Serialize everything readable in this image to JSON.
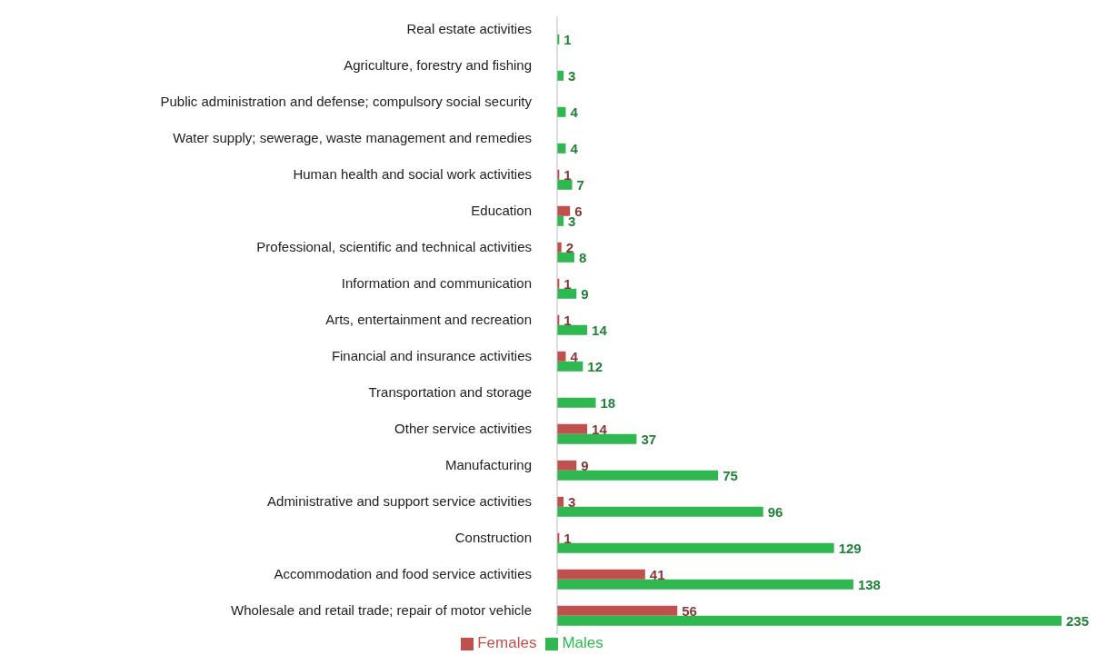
{
  "chart_data": {
    "type": "bar",
    "orientation": "horizontal",
    "categories": [
      "Real estate activities",
      "Agriculture, forestry and fishing",
      "Public administration and defense; compulsory social security",
      "Water supply; sewerage, waste management and remedies",
      "Human health and social work activities",
      "Education",
      "Professional, scientific and technical activities",
      "Information and communication",
      "Arts, entertainment and recreation",
      "Financial and insurance activities",
      "Transportation and storage",
      "Other service activities",
      "Manufacturing",
      "Administrative and support service activities",
      "Construction",
      "Accommodation and food service activities",
      "Wholesale and retail trade; repair of motor vehicle"
    ],
    "series": [
      {
        "name": "Females",
        "color": "#c0504d",
        "values": [
          null,
          null,
          null,
          null,
          1,
          6,
          2,
          1,
          1,
          4,
          null,
          14,
          9,
          3,
          1,
          41,
          56
        ]
      },
      {
        "name": "Males",
        "color": "#2eb84f",
        "values": [
          1,
          3,
          4,
          4,
          7,
          3,
          8,
          9,
          14,
          12,
          18,
          37,
          75,
          96,
          129,
          138,
          235
        ]
      }
    ],
    "data_labels": true,
    "legend": "bottom",
    "grid": false,
    "tick_labels": "y"
  }
}
